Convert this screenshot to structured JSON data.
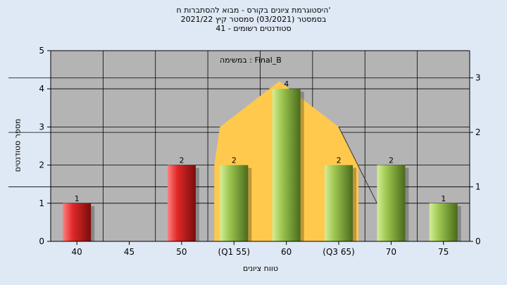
{
  "chart_data": {
    "type": "bar",
    "title_lines": [
      "היסטוגרמת ציונים בקורס - מבוא להסתברות ח'",
      "בסמסטר  (03/2021)  סמסטר קיץ  2021/22",
      "סטודנטים רשומים - 41"
    ],
    "annotation": "במשימה : Final_B",
    "xlabel": "טווח ציונים",
    "ylabel": "מספר סטודנטים",
    "categories": [
      "40",
      "45",
      "50",
      "(Q1 55)",
      "60",
      "(Q3 65)",
      "70",
      "75"
    ],
    "values": [
      1,
      0,
      2,
      2,
      4,
      2,
      2,
      1
    ],
    "value_labels": [
      "1",
      "",
      "2",
      "2",
      "4",
      "2",
      "2",
      "1"
    ],
    "bar_colors": [
      "#e03030",
      null,
      "#e03030",
      "#9dc850",
      "#9dc850",
      "#9dc850",
      "#9dc850",
      "#9dc850"
    ],
    "ylim": [
      0,
      5
    ],
    "yticks": [
      "0",
      "1",
      "2",
      "3",
      "4",
      "5"
    ],
    "y2lim": [
      0,
      3.5
    ],
    "y2ticks": [
      "0",
      "1",
      "2",
      "3"
    ],
    "area_series": {
      "color": "#ffc94d",
      "x_start": "(Q1 55)",
      "x_peak": "60",
      "x_end": "(Q3 65)",
      "values": [
        2,
        3,
        4.2,
        3,
        2
      ]
    },
    "trend_line_points": [
      {
        "x": "(Q3 65)",
        "y": 3
      },
      {
        "x": "70",
        "y": 1
      }
    ],
    "grid": true,
    "plot_background": "#b4b4b4"
  }
}
